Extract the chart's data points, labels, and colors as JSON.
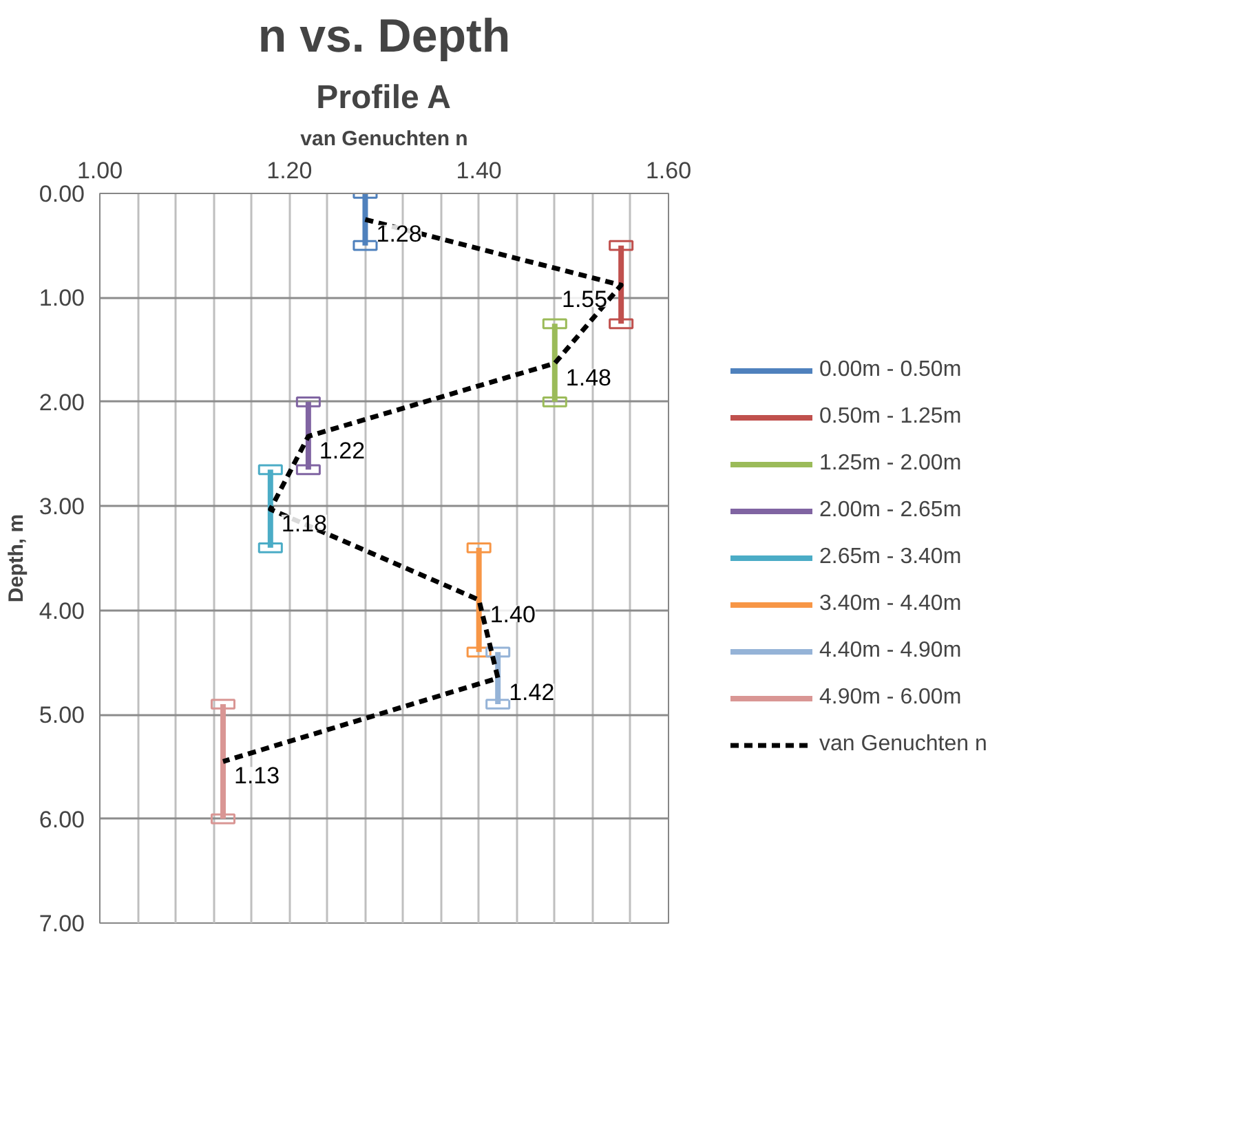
{
  "chart_data": {
    "type": "line",
    "orientation": "horizontal",
    "title": "n vs. Depth",
    "subtitle": "Profile A",
    "xlabel": "van Genuchten n",
    "ylabel": "Depth, m",
    "xlim": [
      1.0,
      1.6
    ],
    "ylim": [
      7,
      0
    ],
    "xticks": [
      {
        "value": 1.0,
        "label": "1.00"
      },
      {
        "value": 1.04,
        "label": null
      },
      {
        "value": 1.08,
        "label": null
      },
      {
        "value": 1.12,
        "label": null
      },
      {
        "value": 1.16,
        "label": null
      },
      {
        "value": 1.2,
        "label": "1.20"
      },
      {
        "value": 1.24,
        "label": null
      },
      {
        "value": 1.28,
        "label": null
      },
      {
        "value": 1.32,
        "label": null
      },
      {
        "value": 1.36,
        "label": null
      },
      {
        "value": 1.4,
        "label": "1.40"
      },
      {
        "value": 1.44,
        "label": null
      },
      {
        "value": 1.48,
        "label": null
      },
      {
        "value": 1.52,
        "label": null
      },
      {
        "value": 1.56,
        "label": null
      },
      {
        "value": 1.6,
        "label": "1.60"
      }
    ],
    "yticks": [
      {
        "value": 0,
        "label": "0.00"
      },
      {
        "value": 1,
        "label": "1.00"
      },
      {
        "value": 2,
        "label": "2.00"
      },
      {
        "value": 3,
        "label": "3.00"
      },
      {
        "value": 4,
        "label": "4.00"
      },
      {
        "value": 5,
        "label": "5.00"
      },
      {
        "value": 6,
        "label": "6.00"
      },
      {
        "value": 7,
        "label": "7.00"
      }
    ],
    "grid": true,
    "legend": "right",
    "marker": "square",
    "series": [
      {
        "name": "0.00m - 0.50m",
        "color": "#4f81bd",
        "x": [
          0,
          0.5
        ],
        "values": [
          1.28,
          1.28
        ]
      },
      {
        "name": "0.50m - 1.25m",
        "color": "#c0504d",
        "x": [
          0.5,
          1.25
        ],
        "values": [
          1.55,
          1.55
        ]
      },
      {
        "name": "1.25m - 2.00m",
        "color": "#9bbb59",
        "x": [
          1.25,
          2.0
        ],
        "values": [
          1.48,
          1.48
        ]
      },
      {
        "name": "2.00m - 2.65m",
        "color": "#8064a2",
        "x": [
          2.0,
          2.65
        ],
        "values": [
          1.22,
          1.22
        ]
      },
      {
        "name": "2.65m - 3.40m",
        "color": "#4bacc6",
        "x": [
          2.65,
          3.4
        ],
        "values": [
          1.18,
          1.18
        ]
      },
      {
        "name": "3.40m - 4.40m",
        "color": "#f79646",
        "x": [
          3.4,
          4.4
        ],
        "values": [
          1.4,
          1.4
        ]
      },
      {
        "name": "4.40m - 4.90m",
        "color": "#95b3d7",
        "x": [
          4.4,
          4.9
        ],
        "values": [
          1.42,
          1.42
        ]
      },
      {
        "name": "4.90m - 6.00m",
        "color": "#d99694",
        "x": [
          4.9,
          6.0
        ],
        "values": [
          1.13,
          1.13
        ]
      },
      {
        "name": "van Genuchten n",
        "line_style": "dashed",
        "marker": "none",
        "color": "#000000",
        "x": [
          0.25,
          0.88,
          1.63,
          2.33,
          3.03,
          3.9,
          4.65,
          5.45
        ],
        "values": [
          1.28,
          1.55,
          1.48,
          1.22,
          1.18,
          1.4,
          1.42,
          1.13
        ],
        "value_labels": [
          "1.28",
          "1.55",
          "1.48",
          "1.22",
          "1.18",
          "1.40",
          "1.42",
          "1.13"
        ]
      }
    ]
  }
}
